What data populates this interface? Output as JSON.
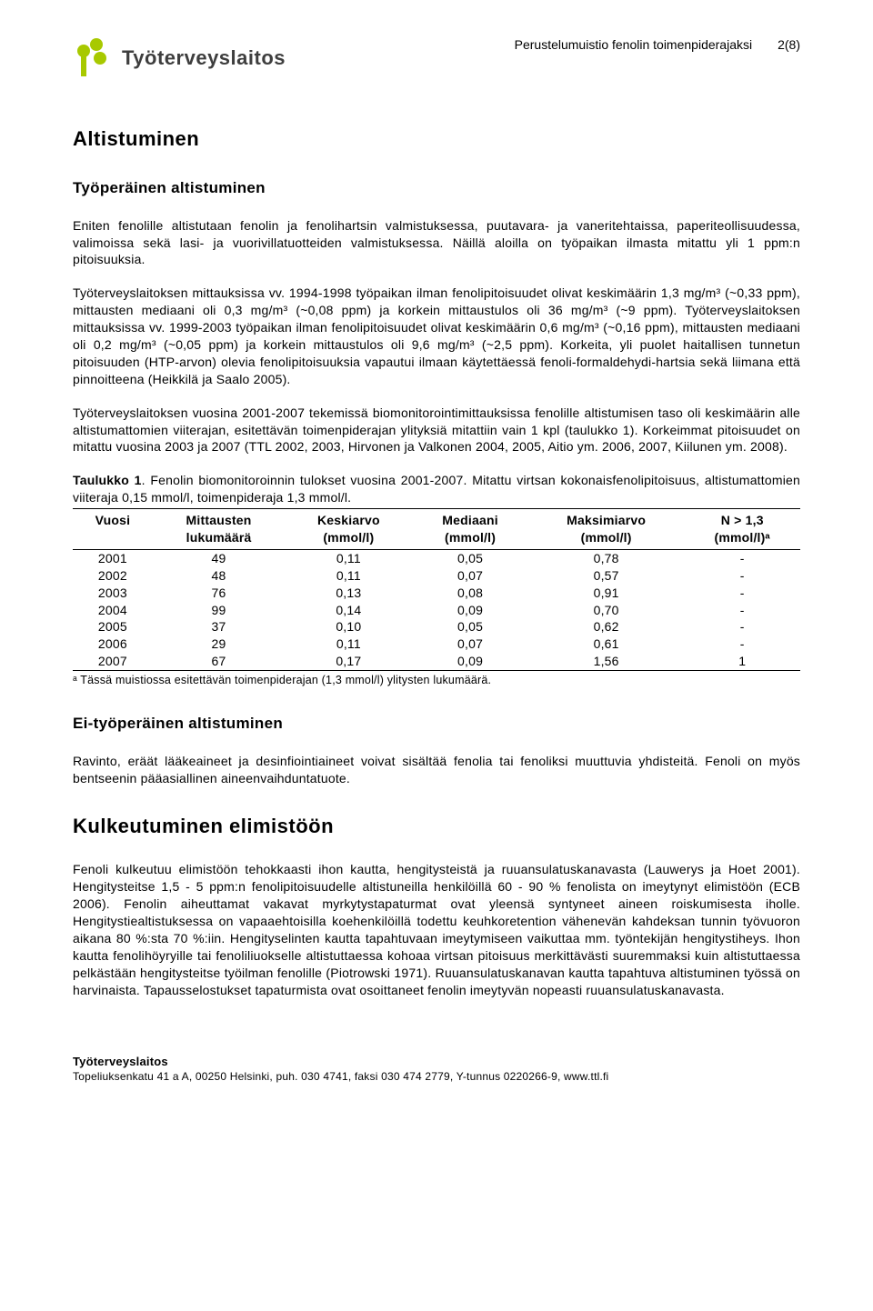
{
  "header": {
    "logo_text": "Työterveyslaitos",
    "doc_title": "Perustelumuistio fenolin toimenpiderajaksi",
    "page_indicator": "2(8)",
    "logo_color": "#a8c900"
  },
  "title_main": "Altistuminen",
  "title_sub1": "Työperäinen altistuminen",
  "para1": "Eniten fenolille altistutaan fenolin ja fenolihartsin valmistuksessa, puutavara- ja vaneritehtaissa, paperiteollisuudessa, valimoissa sekä lasi- ja vuorivillatuotteiden valmistuksessa. Näillä aloilla on työpaikan ilmasta mitattu yli 1 ppm:n pitoisuuksia.",
  "para2": "Työterveyslaitoksen mittauksissa vv. 1994-1998 työpaikan ilman fenolipitoisuudet olivat keskimäärin 1,3 mg/m³ (~0,33 ppm), mittausten mediaani oli 0,3 mg/m³ (~0,08 ppm) ja korkein mittaustulos oli 36 mg/m³ (~9 ppm). Työterveyslaitoksen mittauksissa vv. 1999-2003 työpaikan ilman fenolipitoisuudet olivat keskimäärin 0,6 mg/m³ (~0,16 ppm), mittausten mediaani oli 0,2 mg/m³ (~0,05 ppm) ja korkein mittaustulos oli 9,6 mg/m³ (~2,5 ppm). Korkeita, yli puolet haitallisen tunnetun pitoisuuden (HTP-arvon) olevia fenolipitoisuuksia vapautui ilmaan käytettäessä fenoli-formaldehydi-hartsia sekä liimana että pinnoitteena (Heikkilä ja Saalo 2005).",
  "para3": "Työterveyslaitoksen vuosina 2001-2007 tekemissä biomonitorointimittauksissa fenolille altistumisen taso oli keskimäärin alle altistumattomien viiterajan, esitettävän toimenpiderajan ylityksiä mitattiin vain 1 kpl (taulukko 1). Korkeimmat pitoisuudet on mitattu vuosina 2003 ja 2007 (TTL 2002, 2003, Hirvonen ja Valkonen 2004, 2005, Aitio ym. 2006, 2007, Kiilunen ym. 2008).",
  "table_caption_bold": "Taulukko 1",
  "table_caption_rest": ". Fenolin biomonitoroinnin tulokset vuosina 2001-2007. Mitattu virtsan kokonaisfenolipitoisuus, altistumattomien viiteraja 0,15 mmol/l, toimenpideraja 1,3 mmol/l.",
  "table": {
    "columns": [
      {
        "line1": "Vuosi",
        "line2": ""
      },
      {
        "line1": "Mittausten",
        "line2": "lukumäärä"
      },
      {
        "line1": "Keskiarvo",
        "line2": "(mmol/l)"
      },
      {
        "line1": "Mediaani",
        "line2": "(mmol/l)"
      },
      {
        "line1": "Maksimiarvo",
        "line2": "(mmol/l)"
      },
      {
        "line1": "N > 1,3",
        "line2": "(mmol/l)ᵃ"
      }
    ],
    "rows": [
      [
        "2001",
        "49",
        "0,11",
        "0,05",
        "0,78",
        "-"
      ],
      [
        "2002",
        "48",
        "0,11",
        "0,07",
        "0,57",
        "-"
      ],
      [
        "2003",
        "76",
        "0,13",
        "0,08",
        "0,91",
        "-"
      ],
      [
        "2004",
        "99",
        "0,14",
        "0,09",
        "0,70",
        "-"
      ],
      [
        "2005",
        "37",
        "0,10",
        "0,05",
        "0,62",
        "-"
      ],
      [
        "2006",
        "29",
        "0,11",
        "0,07",
        "0,61",
        "-"
      ],
      [
        "2007",
        "67",
        "0,17",
        "0,09",
        "1,56",
        "1"
      ]
    ]
  },
  "table_footnote": "ᵃ Tässä muistiossa esitettävän toimenpiderajan (1,3 mmol/l) ylitysten lukumäärä.",
  "title_sub2": "Ei-työperäinen altistuminen",
  "para4": "Ravinto, eräät lääkeaineet ja desinfiointiaineet voivat sisältää fenolia tai fenoliksi muuttuvia yhdisteitä. Fenoli on myös bentseenin pääasiallinen aineenvaihduntatuote.",
  "title_main2": "Kulkeutuminen elimistöön",
  "para5": "Fenoli kulkeutuu elimistöön tehokkaasti ihon kautta, hengitysteistä ja ruuansulatuskanavasta (Lauwerys ja Hoet 2001). Hengitysteitse 1,5 - 5 ppm:n fenolipitoisuudelle altistuneilla henkilöillä 60 - 90 % fenolista on imeytynyt elimistöön (ECB 2006). Fenolin aiheuttamat vakavat myrkytystapaturmat ovat yleensä syntyneet aineen roiskumisesta iholle. Hengitystiealtistuksessa on vapaaehtoisilla koehenkilöillä todettu keuhkoretention vähenevän kahdeksan tunnin työvuoron aikana 80 %:sta 70 %:iin. Hengityselinten kautta tapahtuvaan imeytymiseen vaikuttaa mm. työntekijän hengitystiheys. Ihon kautta fenolihöyryille tai fenoliliuokselle altistuttaessa kohoaa virtsan pitoisuus merkittävästi suuremmaksi kuin altistuttaessa pelkästään hengitysteitse työilman fenolille (Piotrowski 1971). Ruuansulatuskanavan kautta tapahtuva altistuminen työssä on harvinaista. Tapausselostukset tapaturmista ovat osoittaneet fenolin imeytyvän nopeasti ruuansulatuskanavasta.",
  "footer": {
    "org": "Työterveyslaitos",
    "address": "Topeliuksenkatu 41 a A, 00250 Helsinki, puh. 030 4741, faksi 030 474 2779, Y-tunnus 0220266-9, www.ttl.fi"
  }
}
